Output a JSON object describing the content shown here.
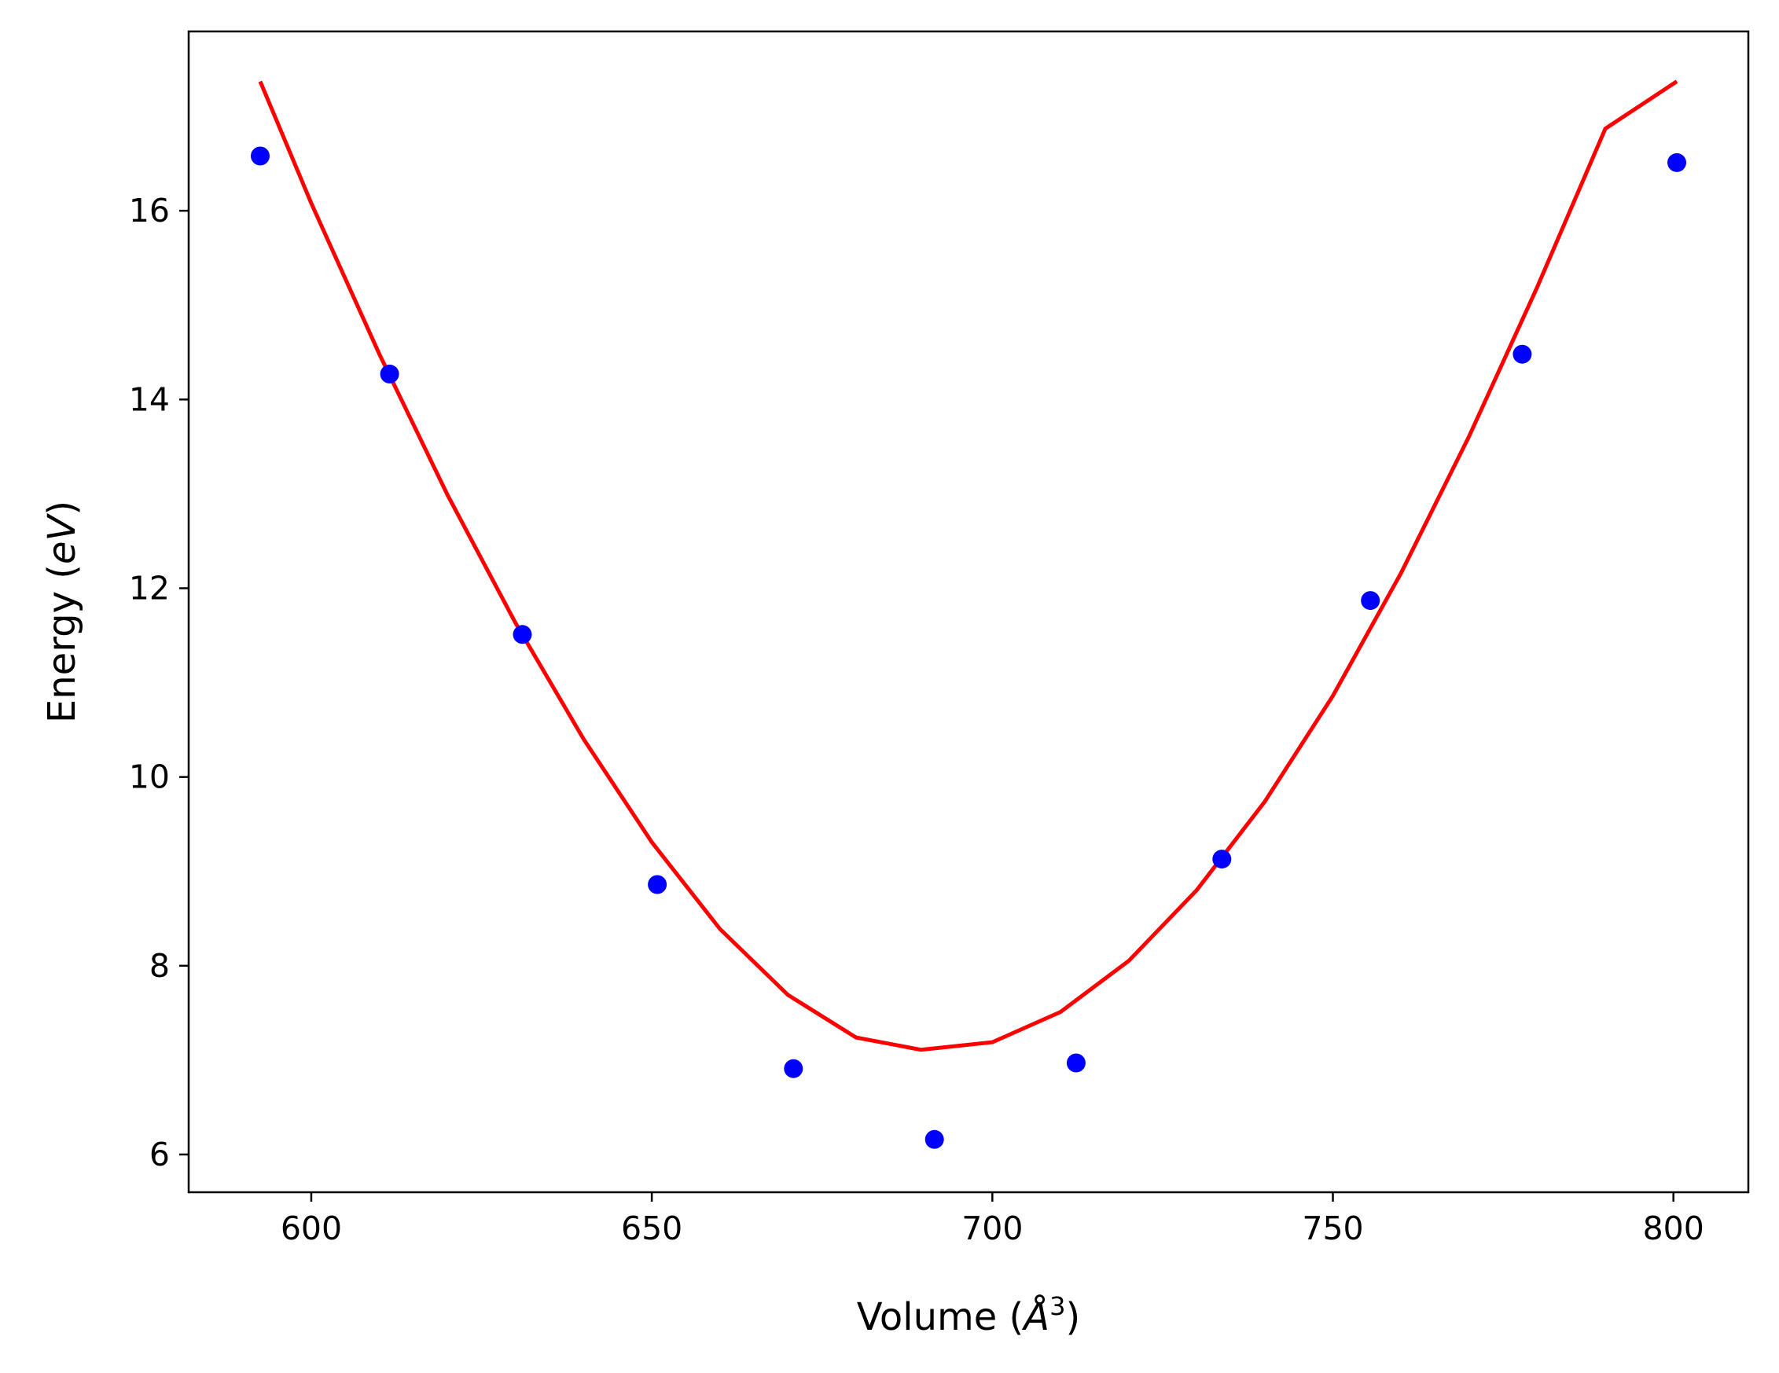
{
  "chart_data": {
    "type": "scatter",
    "xlabel_parts": {
      "main": "Volume (",
      "italic": "Å",
      "sup": "3",
      "end": ")"
    },
    "ylabel_parts": {
      "main": "Energy (",
      "italic": "eV",
      "end": ")"
    },
    "xlim": [
      582,
      811
    ],
    "ylim": [
      5.6,
      17.9
    ],
    "xticks": [
      600,
      650,
      700,
      750,
      800
    ],
    "yticks": [
      6,
      8,
      10,
      12,
      14,
      16
    ],
    "xtick_labels": [
      "600",
      "650",
      "700",
      "750",
      "800"
    ],
    "ytick_labels": [
      "6",
      "8",
      "10",
      "12",
      "14",
      "16"
    ],
    "grid": false,
    "series": [
      {
        "kind": "points",
        "color": "#0000ff",
        "x": [
          592.5,
          611.5,
          631.0,
          650.8,
          670.8,
          691.5,
          712.3,
          733.7,
          755.5,
          777.8,
          800.5
        ],
        "y": [
          16.58,
          14.27,
          11.51,
          8.86,
          6.91,
          6.16,
          6.97,
          9.13,
          11.87,
          14.48,
          16.51
        ]
      },
      {
        "kind": "fit-line",
        "color": "#ff0000",
        "x": [
          592.5,
          600,
          610,
          620,
          630,
          640,
          650,
          660,
          670,
          680,
          689.5,
          700,
          710,
          720,
          730,
          740,
          750,
          760,
          770,
          780,
          790,
          800.5
        ],
        "y": [
          17.37,
          16.08,
          14.48,
          12.99,
          11.63,
          10.4,
          9.31,
          8.39,
          7.69,
          7.24,
          7.11,
          7.19,
          7.51,
          8.05,
          8.8,
          9.74,
          10.86,
          12.16,
          13.61,
          15.19,
          16.87,
          17.37
        ]
      }
    ]
  }
}
